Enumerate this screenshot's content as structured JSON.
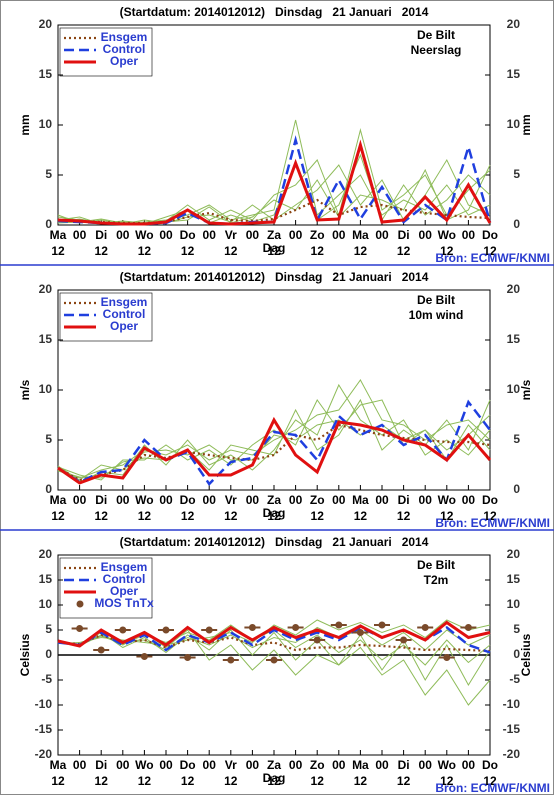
{
  "chart_data": [
    {
      "type": "line",
      "title": "(Startdatum: 2014012012)   Dinsdag   21 Januari   2014",
      "location": "De Bilt",
      "variable": "Neerslag",
      "ylabel": "mm",
      "xlabel": "Dag",
      "source": "Bron: ECMWF/KNMI",
      "day_hour_label": "12",
      "categories": [
        "Ma",
        "00",
        "Di",
        "00",
        "Wo",
        "00",
        "Do",
        "00",
        "Vr",
        "00",
        "Za",
        "00",
        "Zo",
        "00",
        "Ma",
        "00",
        "Di",
        "00",
        "Wo",
        "00",
        "Do"
      ],
      "ylim": [
        0,
        20
      ],
      "yticks": [
        0,
        5,
        10,
        15,
        20
      ],
      "zero_line": false,
      "legend": "top-left",
      "member_color": "#8fbc5a",
      "members": [
        [
          0.8,
          0.5,
          0.3,
          0.2,
          0.3,
          0.5,
          1.0,
          2.0,
          0.5,
          1.0,
          1.5,
          10.5,
          1.0,
          3.0,
          5.0,
          1.0,
          2.5,
          1.5,
          4.0,
          1.0,
          2.0
        ],
        [
          0.3,
          0.6,
          0.2,
          0.4,
          0.2,
          0.4,
          2.0,
          0.5,
          1.5,
          0.5,
          3.0,
          4.0,
          6.5,
          1.0,
          9.5,
          1.5,
          3.0,
          5.0,
          1.0,
          3.5,
          5.5
        ],
        [
          1.0,
          0.2,
          0.5,
          0.1,
          0.5,
          0.2,
          0.8,
          1.0,
          0.3,
          2.0,
          0.5,
          2.0,
          3.5,
          6.0,
          2.0,
          4.5,
          0.5,
          3.0,
          6.5,
          2.0,
          1.0
        ],
        [
          0.5,
          0.8,
          0.1,
          0.3,
          0.1,
          0.8,
          1.5,
          0.2,
          1.0,
          0.3,
          1.0,
          6.0,
          0.5,
          2.0,
          7.0,
          0.5,
          4.0,
          1.0,
          2.5,
          5.0,
          3.0
        ],
        [
          0.2,
          0.3,
          0.6,
          0.2,
          0.2,
          0.3,
          0.5,
          1.8,
          0.2,
          0.8,
          2.5,
          1.5,
          4.5,
          0.8,
          3.0,
          2.5,
          1.5,
          5.5,
          0.5,
          1.5,
          6.0
        ]
      ],
      "series": [
        {
          "name": "Ensgem",
          "color": "#8b4513",
          "style": "dotted",
          "values": [
            0.5,
            0.4,
            0.3,
            0.2,
            0.2,
            0.3,
            0.8,
            1.2,
            0.5,
            0.4,
            0.6,
            1.5,
            2.5,
            1.0,
            1.8,
            2.0,
            1.5,
            1.2,
            1.0,
            0.8,
            0.7
          ]
        },
        {
          "name": "Control",
          "color": "#1f3fdf",
          "style": "dashed",
          "values": [
            0.4,
            0.3,
            0.2,
            0.1,
            0.1,
            0.2,
            1.2,
            0.2,
            0.1,
            0.3,
            0.3,
            8.5,
            0.5,
            4.5,
            0.6,
            3.8,
            0.3,
            2.0,
            0.5,
            7.8,
            0.3
          ]
        },
        {
          "name": "Oper",
          "color": "#e01010",
          "style": "solid",
          "values": [
            0.5,
            0.4,
            0.2,
            0.1,
            0.1,
            0.3,
            1.5,
            0.2,
            0.1,
            0.2,
            0.3,
            6.2,
            0.5,
            0.6,
            8.0,
            0.3,
            0.5,
            2.8,
            0.5,
            4.0,
            0.2
          ]
        }
      ]
    },
    {
      "type": "line",
      "title": "(Startdatum: 2014012012)   Dinsdag   21 Januari   2014",
      "location": "De Bilt",
      "variable": "10m wind",
      "ylabel": "m/s",
      "xlabel": "Dag",
      "source": "Bron: ECMWF/KNMI",
      "day_hour_label": "12",
      "categories": [
        "Ma",
        "00",
        "Di",
        "00",
        "Wo",
        "00",
        "Do",
        "00",
        "Vr",
        "00",
        "Za",
        "00",
        "Zo",
        "00",
        "Ma",
        "00",
        "Di",
        "00",
        "Wo",
        "00",
        "Do"
      ],
      "ylim": [
        0,
        20
      ],
      "yticks": [
        0,
        5,
        10,
        15,
        20
      ],
      "zero_line": false,
      "legend": "top-left",
      "member_color": "#8fbc5a",
      "members": [
        [
          2.0,
          1.2,
          2.0,
          2.5,
          4.0,
          3.5,
          4.5,
          3.0,
          4.0,
          3.5,
          5.0,
          6.0,
          7.5,
          8.0,
          11.0,
          7.0,
          6.5,
          5.0,
          6.5,
          7.0,
          5.0
        ],
        [
          2.3,
          1.5,
          1.0,
          3.0,
          3.0,
          4.5,
          3.0,
          4.0,
          2.5,
          4.5,
          6.0,
          4.5,
          9.0,
          6.0,
          8.5,
          9.0,
          4.5,
          6.0,
          4.0,
          5.5,
          7.5
        ],
        [
          2.1,
          0.8,
          1.8,
          1.5,
          4.5,
          2.5,
          5.0,
          2.5,
          3.5,
          2.0,
          4.0,
          7.0,
          5.5,
          10.5,
          7.0,
          5.5,
          7.0,
          3.5,
          5.0,
          3.5,
          6.0
        ],
        [
          2.4,
          1.0,
          2.5,
          2.0,
          3.8,
          4.0,
          3.5,
          4.5,
          3.0,
          3.0,
          5.5,
          5.0,
          6.5,
          7.0,
          5.5,
          6.5,
          5.0,
          6.0,
          3.0,
          6.5,
          4.0
        ],
        [
          1.9,
          1.3,
          1.2,
          2.8,
          3.2,
          3.0,
          4.0,
          2.0,
          4.5,
          4.0,
          3.5,
          8.0,
          4.0,
          5.5,
          9.0,
          4.0,
          6.0,
          4.5,
          7.0,
          4.0,
          9.0
        ]
      ],
      "series": [
        {
          "name": "Ensgem",
          "color": "#8b4513",
          "style": "dotted",
          "values": [
            2.2,
            1.0,
            1.5,
            2.0,
            3.5,
            3.2,
            3.8,
            3.5,
            3.2,
            3.0,
            3.5,
            5.5,
            5.0,
            6.5,
            6.0,
            5.5,
            5.2,
            5.0,
            4.8,
            4.8,
            4.5
          ]
        },
        {
          "name": "Control",
          "color": "#1f3fdf",
          "style": "dashed",
          "values": [
            2.2,
            0.8,
            1.8,
            2.0,
            5.0,
            3.0,
            3.8,
            0.6,
            2.8,
            3.2,
            5.8,
            5.5,
            3.0,
            7.4,
            5.5,
            6.5,
            4.5,
            5.5,
            3.0,
            8.8,
            6.0
          ]
        },
        {
          "name": "Oper",
          "color": "#e01010",
          "style": "solid",
          "values": [
            2.2,
            0.7,
            1.5,
            1.2,
            4.2,
            3.0,
            4.0,
            1.5,
            1.5,
            2.5,
            7.0,
            3.5,
            1.8,
            6.8,
            6.5,
            6.0,
            5.0,
            4.5,
            3.0,
            5.5,
            3.0
          ]
        }
      ]
    },
    {
      "type": "line",
      "title": "(Startdatum: 2014012012)   Dinsdag   21 Januari   2014",
      "location": "De Bilt",
      "variable": "T2m",
      "ylabel": "Celsius",
      "xlabel": "Dag",
      "source": "Bron: ECMWF/KNMI",
      "day_hour_label": "12",
      "categories": [
        "Ma",
        "00",
        "Di",
        "00",
        "Wo",
        "00",
        "Do",
        "00",
        "Vr",
        "00",
        "Za",
        "00",
        "Zo",
        "00",
        "Ma",
        "00",
        "Di",
        "00",
        "Wo",
        "00",
        "Do"
      ],
      "ylim": [
        -20,
        20
      ],
      "yticks": [
        -20,
        -15,
        -10,
        -5,
        0,
        5,
        10,
        15,
        20
      ],
      "zero_line": true,
      "legend": "top-left",
      "member_color": "#8fbc5a",
      "members": [
        [
          2.5,
          2.0,
          4.5,
          1.5,
          3.5,
          0.5,
          4.0,
          1.0,
          5.0,
          0.0,
          4.5,
          -1.0,
          3.0,
          -2.0,
          4.0,
          -3.0,
          3.0,
          -5.0,
          2.0,
          -6.0,
          1.0
        ],
        [
          2.3,
          2.5,
          3.5,
          3.0,
          2.5,
          2.0,
          3.0,
          3.5,
          4.5,
          2.5,
          6.0,
          4.0,
          7.0,
          5.0,
          6.5,
          4.5,
          6.0,
          3.5,
          7.0,
          5.0,
          6.0
        ],
        [
          2.6,
          1.8,
          4.0,
          2.0,
          4.5,
          1.5,
          5.0,
          -1.0,
          2.0,
          -3.0,
          1.0,
          -4.0,
          0.0,
          -2.0,
          1.5,
          -4.0,
          -1.0,
          -8.0,
          -3.0,
          -10.0,
          -5.0
        ],
        [
          2.4,
          2.2,
          4.8,
          2.8,
          3.0,
          1.0,
          3.5,
          2.0,
          4.0,
          1.5,
          3.5,
          2.5,
          5.5,
          3.5,
          5.0,
          2.0,
          4.5,
          1.0,
          5.0,
          2.0,
          4.0
        ],
        [
          2.7,
          2.0,
          3.8,
          2.2,
          4.0,
          2.5,
          4.5,
          3.0,
          6.0,
          3.0,
          5.0,
          1.5,
          4.0,
          0.5,
          3.0,
          -1.0,
          2.0,
          -2.0,
          3.0,
          -1.5,
          2.0
        ]
      ],
      "series": [
        {
          "name": "Ensgem",
          "color": "#8b4513",
          "style": "dotted",
          "values": [
            2.5,
            2.2,
            4.0,
            2.5,
            3.0,
            1.5,
            3.0,
            2.5,
            3.5,
            2.0,
            2.5,
            1.0,
            1.5,
            1.5,
            2.0,
            1.8,
            1.5,
            1.0,
            1.2,
            1.0,
            0.8
          ]
        },
        {
          "name": "Control",
          "color": "#1f3fdf",
          "style": "dashed",
          "values": [
            2.5,
            2.0,
            4.5,
            2.0,
            4.0,
            1.0,
            4.0,
            2.5,
            4.5,
            2.0,
            5.0,
            3.0,
            4.5,
            3.0,
            5.5,
            3.5,
            5.0,
            3.0,
            5.5,
            2.0,
            0.5
          ]
        },
        {
          "name": "Oper",
          "color": "#e01010",
          "style": "solid",
          "values": [
            2.8,
            1.8,
            5.0,
            2.5,
            4.5,
            2.0,
            5.5,
            2.5,
            5.5,
            3.0,
            5.5,
            3.5,
            5.0,
            3.5,
            5.8,
            3.5,
            5.0,
            3.0,
            6.5,
            3.5,
            4.5
          ]
        },
        {
          "name": "MOS TnTx",
          "color": "#7a4a2a",
          "style": "points",
          "values": [
            null,
            5.3,
            1.0,
            5.0,
            -0.3,
            5.0,
            -0.5,
            5.0,
            -1.0,
            5.5,
            -1.0,
            5.5,
            3.0,
            6.0,
            4.5,
            6.0,
            3.0,
            5.5,
            -0.5,
            5.5,
            null
          ]
        }
      ]
    }
  ]
}
